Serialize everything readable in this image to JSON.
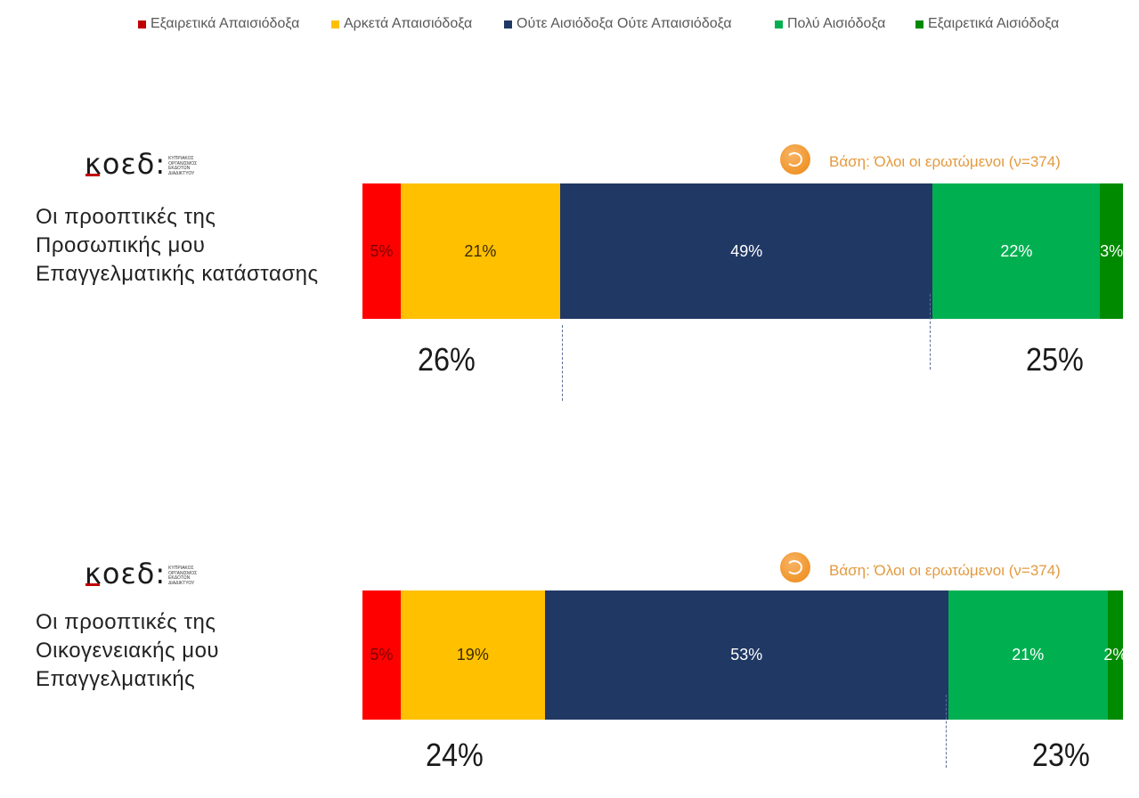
{
  "legend": [
    {
      "label": "Εξαιρετικά Απαισιόδοξα",
      "color": "#c00000"
    },
    {
      "label": "Αρκετά Απαισιόδοξα",
      "color": "#ffc000"
    },
    {
      "label": "Ούτε Αισιόδοξα Ούτε Απαισιόδοξα",
      "color": "#203864"
    },
    {
      "label": "Πολύ Αισιόδοξα",
      "color": "#00b050"
    },
    {
      "label": "Εξαιρετικά Αισιόδοξα",
      "color": "#008a00"
    }
  ],
  "logo": {
    "word": "κοεδ:",
    "small_lines": [
      "ΚΥΠΡΙΑΚΟΣ",
      "ΟΡΓΑΝΙΣΜΟΣ",
      "ΕΚΔΟΤΩΝ",
      "ΔΙΑΔΙΚΤΥΟΥ"
    ]
  },
  "base_note": "Βάση: Όλοι οι ερωτώμενοι (ν=374)",
  "chart_data": [
    {
      "type": "bar",
      "orientation": "horizontal-stacked",
      "categories": [
        "Οι  προοπτικές της Προσωπικής μου Επαγγελματικής κατάστασης"
      ],
      "question_lines": [
        "Οι  προοπτικές της",
        "Προσωπικής μου",
        "Επαγγελματικής κατάστασης"
      ],
      "series": [
        {
          "name": "Εξαιρετικά Απαισιόδοξα",
          "values": [
            5
          ],
          "label": "5%",
          "color": "#ff0000",
          "text_color": "#7a0000"
        },
        {
          "name": "Αρκετά Απαισιόδοξα",
          "values": [
            21
          ],
          "label": "21%",
          "color": "#ffc000",
          "text_color": "#3a2a00"
        },
        {
          "name": "Ούτε Αισιόδοξα Ούτε Απαισιόδοξα",
          "values": [
            49
          ],
          "label": "49%",
          "color": "#203864",
          "text_color": "#ffffff"
        },
        {
          "name": "Πολύ Αισιόδοξα",
          "values": [
            22
          ],
          "label": "22%",
          "color": "#00b050",
          "text_color": "#ffffff"
        },
        {
          "name": "Εξαιρετικά Αισιόδοξα",
          "values": [
            3
          ],
          "label": "3%",
          "color": "#008a00",
          "text_color": "#ffffff"
        }
      ],
      "net_pessimistic": "26%",
      "net_optimistic": "25%"
    },
    {
      "type": "bar",
      "orientation": "horizontal-stacked",
      "categories": [
        "Οι  προοπτικές της Οικογενειακής μου Επαγγελματικής"
      ],
      "question_lines": [
        "Οι  προοπτικές της",
        "Οικογενειακής μου",
        "Επαγγελματικής"
      ],
      "series": [
        {
          "name": "Εξαιρετικά Απαισιόδοξα",
          "values": [
            5
          ],
          "label": "5%",
          "color": "#ff0000",
          "text_color": "#7a0000"
        },
        {
          "name": "Αρκετά Απαισιόδοξα",
          "values": [
            19
          ],
          "label": "19%",
          "color": "#ffc000",
          "text_color": "#3a2a00"
        },
        {
          "name": "Ούτε Αισιόδοξα Ούτε Απαισιόδοξα",
          "values": [
            53
          ],
          "label": "53%",
          "color": "#203864",
          "text_color": "#ffffff"
        },
        {
          "name": "Πολύ Αισιόδοξα",
          "values": [
            21
          ],
          "label": "21%",
          "color": "#00b050",
          "text_color": "#ffffff"
        },
        {
          "name": "Εξαιρετικά Αισιόδοξα",
          "values": [
            2
          ],
          "label": "2%",
          "color": "#008a00",
          "text_color": "#ffffff"
        }
      ],
      "net_pessimistic": "24%",
      "net_optimistic": "23%"
    }
  ]
}
